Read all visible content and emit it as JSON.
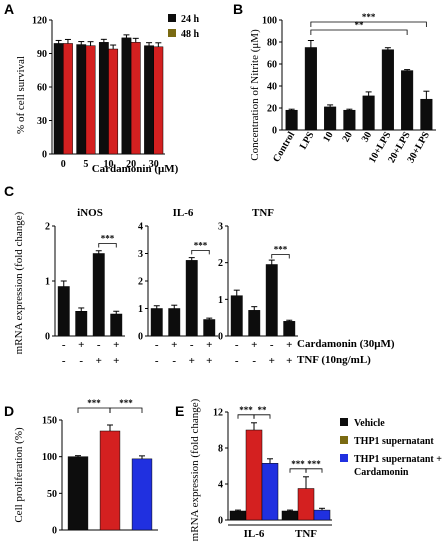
{
  "colors": {
    "black": "#0d0d0d",
    "red": "#d42020",
    "olive": "#7a6a12",
    "blue": "#2030e0",
    "pink": "#f7a8d0",
    "magenta": "#ff66cc"
  },
  "chart_data": [
    {
      "panel": "A",
      "type": "bar",
      "ylabel": "% of cell survival",
      "xlabel": "Cardamonin (μM)",
      "categories": [
        "0",
        "5",
        "10",
        "20",
        "30"
      ],
      "ylim": [
        0,
        120
      ],
      "yticks": [
        "0",
        "30",
        "60",
        "90",
        "120"
      ],
      "series": [
        {
          "name": "24 h",
          "values": [
            99,
            98,
            100,
            104,
            97
          ]
        },
        {
          "name": "48 h",
          "values": [
            99,
            97,
            94,
            100,
            96
          ]
        }
      ]
    },
    {
      "panel": "B",
      "type": "bar",
      "ylabel": "Concentration of Nitrite (μM)",
      "categories": [
        "Control",
        "LPS",
        "10",
        "20",
        "30",
        "10+LPS",
        "20+LPS",
        "30+LPS"
      ],
      "values": [
        18,
        75,
        21,
        18,
        31,
        73,
        54,
        28
      ],
      "ylim": [
        0,
        100
      ],
      "yticks": [
        "0",
        "20",
        "40",
        "60",
        "80",
        "100"
      ],
      "significance": [
        "***",
        "**"
      ]
    },
    {
      "panel": "C",
      "type": "bar",
      "ylabel": "mRNA expression (fold change)",
      "subplots": [
        {
          "title": "iNOS",
          "ylim": [
            0,
            2
          ],
          "yticks": [
            "0",
            "1",
            "2"
          ],
          "values": [
            0.9,
            0.45,
            1.5,
            0.4
          ],
          "sig": "***"
        },
        {
          "title": "IL-6",
          "ylim": [
            0,
            4
          ],
          "yticks": [
            "0",
            "1",
            "2",
            "3",
            "4"
          ],
          "values": [
            1.0,
            1.0,
            2.75,
            0.6
          ],
          "sig": "***"
        },
        {
          "title": "TNF",
          "ylim": [
            0,
            3
          ],
          "yticks": [
            "0",
            "1",
            "2",
            "3"
          ],
          "values": [
            1.1,
            0.7,
            1.95,
            0.4
          ],
          "sig": "***"
        }
      ],
      "conditions": [
        {
          "label": "Cardamonin (30μM)",
          "signs": [
            "-",
            "+",
            "-",
            "+"
          ]
        },
        {
          "label": "TNF (10ng/mL)",
          "signs": [
            "-",
            "-",
            "+",
            "+"
          ]
        }
      ]
    },
    {
      "panel": "D",
      "type": "bar",
      "ylabel": "Cell proliferation (%)",
      "values": [
        100,
        135,
        97
      ],
      "ylim": [
        0,
        150
      ],
      "yticks": [
        "0",
        "50",
        "100",
        "150"
      ],
      "significance": [
        "***",
        "***"
      ]
    },
    {
      "panel": "E",
      "type": "bar",
      "ylabel": "mRNA expression (fold change)",
      "categories": [
        "IL-6",
        "TNF"
      ],
      "ylim": [
        0,
        12
      ],
      "yticks": [
        "0",
        "4",
        "8",
        "12"
      ],
      "series": [
        {
          "name": "Vehicle",
          "values": [
            1,
            1
          ]
        },
        {
          "name": "THP1 supernatant",
          "values": [
            10,
            3.5
          ]
        },
        {
          "name": "THP1 supernatant + Cardamonin",
          "values": [
            6.3,
            1.1
          ]
        }
      ],
      "significance": {
        "IL-6": [
          "***",
          "**"
        ],
        "TNF": [
          "***",
          "***"
        ]
      }
    }
  ]
}
